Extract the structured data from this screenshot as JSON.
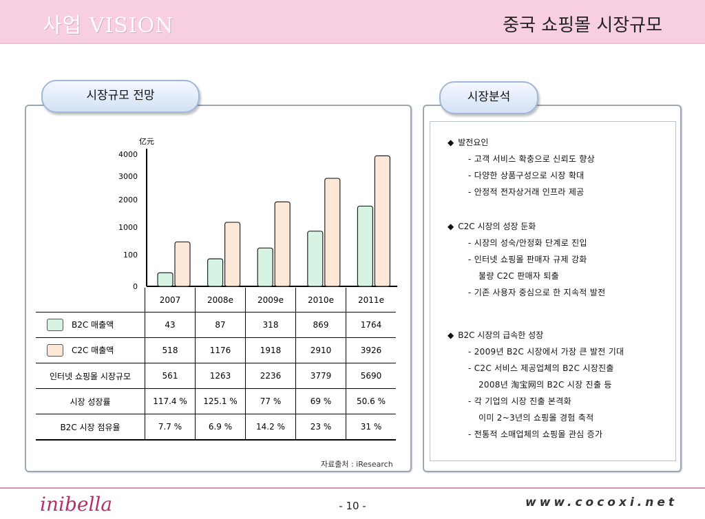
{
  "header": {
    "left_title": "사업 VISION",
    "right_title": "중국 쇼핑몰 시장규모"
  },
  "left_panel": {
    "tab_label": "시장규모 전망",
    "source": "자료출처 : iResearch"
  },
  "right_panel": {
    "tab_label": "시장분석"
  },
  "chart_data": {
    "type": "bar",
    "ylabel": "亿元",
    "y_ticks": [
      "4000",
      "3000",
      "2000",
      "1000",
      "100",
      "0"
    ],
    "categories": [
      "2007",
      "2008e",
      "2009e",
      "2010e",
      "2011e"
    ],
    "series": [
      {
        "name": "B2C 매출액",
        "color": "#d6f3e4",
        "values": [
          43,
          87,
          318,
          869,
          1764
        ]
      },
      {
        "name": "C2C 매출액",
        "color": "#fde7d6",
        "values": [
          518,
          1176,
          1918,
          2910,
          3926
        ]
      }
    ]
  },
  "table": {
    "rows": [
      {
        "label": "B2C 매출액",
        "legend_color": "#d6f3e4",
        "values": [
          "43",
          "87",
          "318",
          "869",
          "1764"
        ]
      },
      {
        "label": "C2C 매출액",
        "legend_color": "#fde7d6",
        "values": [
          "518",
          "1176",
          "1918",
          "2910",
          "3926"
        ]
      },
      {
        "label": "인터넷 쇼핑몰 시장규모",
        "values": [
          "561",
          "1263",
          "2236",
          "3779",
          "5690"
        ]
      },
      {
        "label": "시장 성장률",
        "values": [
          "117.4 %",
          "125.1 %",
          "77 %",
          "69 %",
          "50.6 %"
        ]
      },
      {
        "label": "B2C 시장 점유율",
        "values": [
          "7.7 %",
          "6.9 %",
          "14.2 %",
          "23 %",
          "31 %"
        ]
      }
    ]
  },
  "analysis": {
    "sections": [
      {
        "heading": "발전요인",
        "lines": [
          "- 고객 서비스 확충으로 신뢰도 향상",
          "- 다양한 상품구성으로 시장 확대",
          "- 안정적 전자상거래 인프라 제공"
        ]
      },
      {
        "heading": "C2C 시장의 성장 둔화",
        "lines": [
          "- 시장의 성숙/안정화 단계로 진입",
          "- 인터넷 쇼핑몰 판매자 규제 강화",
          "  불량 C2C 판매자 퇴출",
          "- 기존 사용자 중심으로 한 지속적 발전"
        ]
      },
      {
        "heading": "B2C 시장의 급속한 성장",
        "lines": [
          "- 2009년 B2C 시장에서 가장 큰 발전 기대",
          "- C2C 서비스 제공업체의 B2C 시장진출",
          "  2008년 淘宝网의 B2C 시장 진출 등",
          "- 각 기업의 시장 진출 본격화",
          "  이미 2~3년의 쇼핑몰 경험 축적",
          "- 전통적 소매업체의 쇼핑몰 관심 증가"
        ]
      }
    ]
  },
  "footer": {
    "logo": "inibella",
    "page": "- 10 -",
    "website": "www.cocoxi.net"
  }
}
